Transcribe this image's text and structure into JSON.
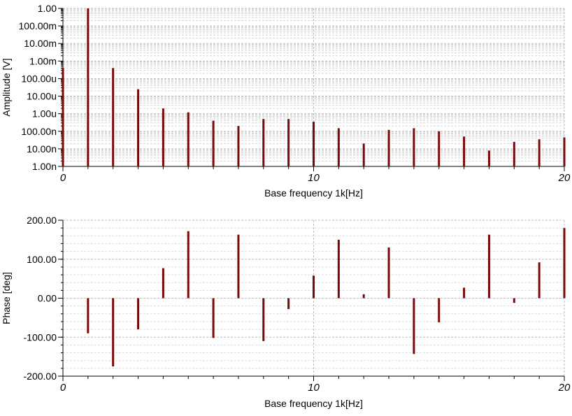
{
  "chart_data": [
    {
      "type": "bar",
      "xlabel": "Base frequency 1k[Hz]",
      "ylabel": "Amplitude [V]",
      "x_ticks": [
        "0",
        "10",
        "20"
      ],
      "xlim": [
        0,
        20
      ],
      "yscale": "log",
      "ylim": [
        1e-09,
        1
      ],
      "y_ticks": [
        {
          "value": 1e-09,
          "label": "1.00n"
        },
        {
          "value": 1e-08,
          "label": "10.00n"
        },
        {
          "value": 1e-07,
          "label": "100.00n"
        },
        {
          "value": 1e-06,
          "label": "1.00u"
        },
        {
          "value": 1e-05,
          "label": "10.00u"
        },
        {
          "value": 0.0001,
          "label": "100.00u"
        },
        {
          "value": 0.001,
          "label": "1.00m"
        },
        {
          "value": 0.01,
          "label": "10.00m"
        },
        {
          "value": 0.1,
          "label": "100.00m"
        },
        {
          "value": 1,
          "label": "1.00"
        }
      ],
      "grid": true,
      "color": "#7a0a0a",
      "x": [
        0,
        1,
        2,
        3,
        4,
        5,
        6,
        7,
        8,
        9,
        10,
        11,
        12,
        13,
        14,
        15,
        16,
        17,
        18,
        19,
        20
      ],
      "values": [
        0.0004,
        1.0,
        0.0004,
        2.5e-05,
        2e-06,
        1.2e-06,
        4e-07,
        2e-07,
        5e-07,
        5e-07,
        3.5e-07,
        1.5e-07,
        2e-08,
        1.2e-07,
        1.5e-07,
        1e-07,
        5e-08,
        8e-09,
        2.5e-08,
        3.5e-08,
        4.5e-08
      ]
    },
    {
      "type": "bar",
      "xlabel": "Base frequency 1k[Hz]",
      "ylabel": "Phase [deg]",
      "x_ticks": [
        "0",
        "10",
        "20"
      ],
      "xlim": [
        0,
        20
      ],
      "ylim": [
        -200,
        200
      ],
      "y_ticks": [
        {
          "value": -200,
          "label": "-200.00"
        },
        {
          "value": -100,
          "label": "-100.00"
        },
        {
          "value": 0,
          "label": "0.00"
        },
        {
          "value": 100,
          "label": "100.00"
        },
        {
          "value": 200,
          "label": "200.00"
        }
      ],
      "grid": true,
      "color": "#7a0a0a",
      "x": [
        1,
        2,
        3,
        4,
        5,
        6,
        7,
        8,
        9,
        10,
        11,
        12,
        13,
        14,
        15,
        16,
        17,
        18,
        19,
        20
      ],
      "values": [
        -90,
        -175,
        -80,
        77,
        172,
        -102,
        163,
        -110,
        -28,
        58,
        150,
        10,
        130,
        -143,
        -62,
        27,
        163,
        -12,
        92,
        180
      ]
    }
  ]
}
